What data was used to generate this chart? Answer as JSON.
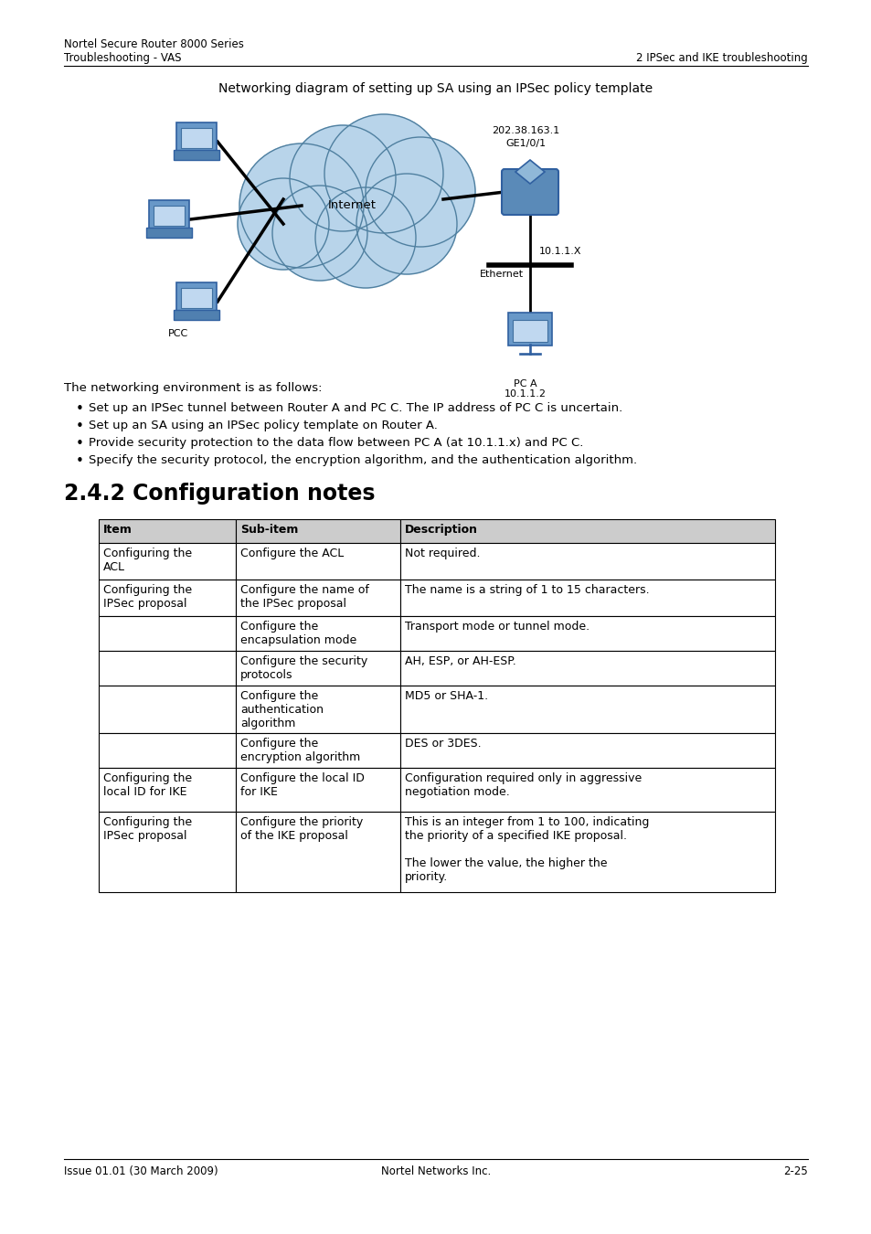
{
  "header_line1": "Nortel Secure Router 8000 Series",
  "header_line2": "Troubleshooting - VAS",
  "header_right": "2 IPSec and IKE troubleshooting",
  "diagram_title": "Networking diagram of setting up SA using an IPSec policy template",
  "section_title": "2.4.2 Configuration notes",
  "intro_text": "The networking environment is as follows:",
  "bullets": [
    "Set up an IPSec tunnel between Router A and PC C. The IP address of PC C is uncertain.",
    "Set up an SA using an IPSec policy template on Router A.",
    "Provide security protection to the data flow between PC A (at 10.1.1.x) and PC C.",
    "Specify the security protocol, the encryption algorithm, and the authentication algorithm."
  ],
  "table_headers": [
    "Item",
    "Sub-item",
    "Description"
  ],
  "footer_left": "Issue 01.01 (30 March 2009)",
  "footer_center": "Nortel Networks Inc.",
  "footer_right": "2-25",
  "bg_color": "#ffffff"
}
